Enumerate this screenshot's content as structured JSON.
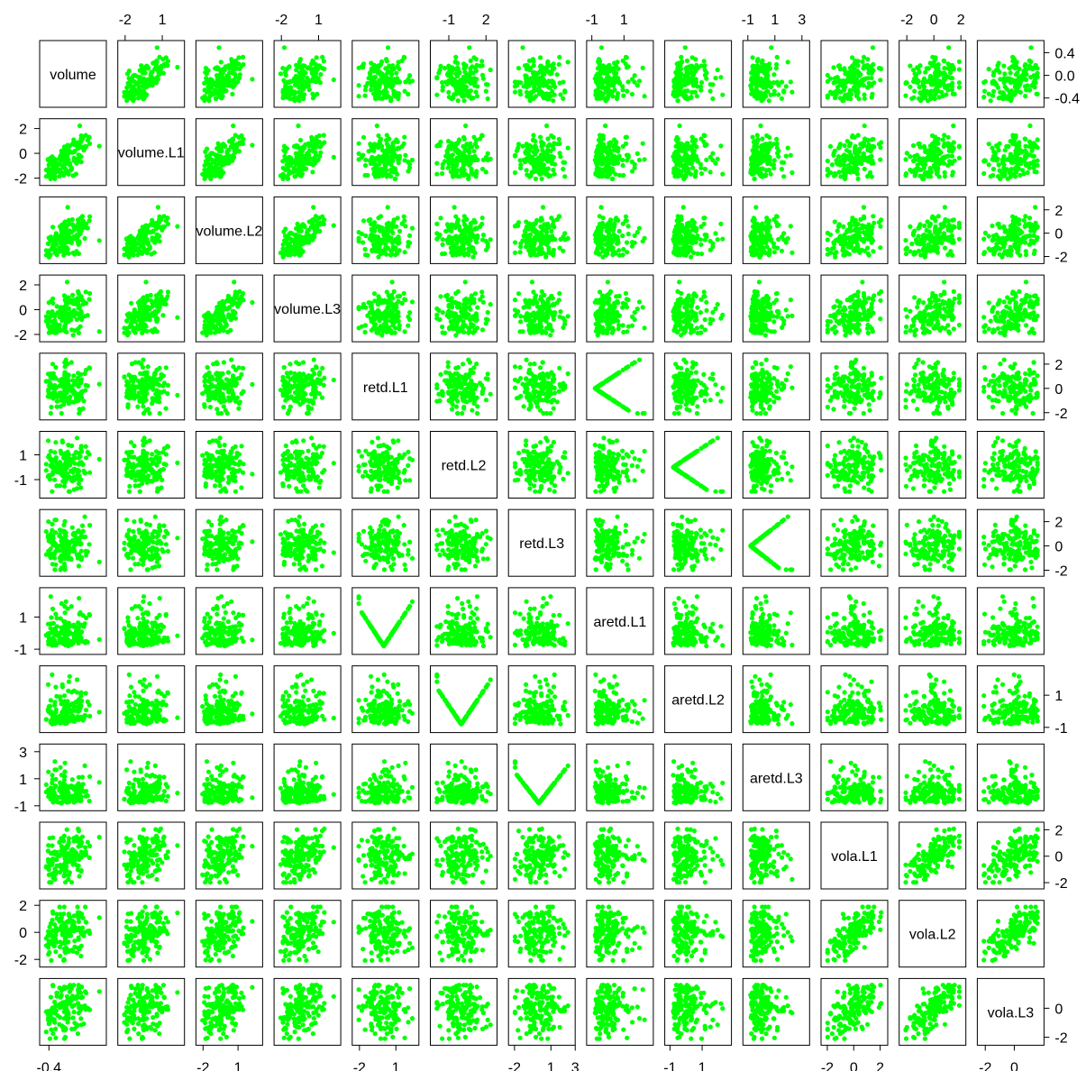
{
  "chart_data": {
    "type": "scatter",
    "subtype": "pairs-matrix",
    "variables": [
      "volume",
      "volume.L1",
      "volume.L2",
      "volume.L3",
      "retd.L1",
      "retd.L2",
      "retd.L3",
      "aretd.L1",
      "aretd.L2",
      "aretd.L3",
      "vola.L1",
      "vola.L2",
      "vola.L3"
    ],
    "point_color": "#00FF00",
    "point_count_per_panel": 150,
    "ranges": [
      [
        -0.5,
        0.55
      ],
      [
        -2.3,
        2.5
      ],
      [
        -2.3,
        2.8
      ],
      [
        -2.3,
        2.5
      ],
      [
        -2.3,
        2.6
      ],
      [
        -2.2,
        2.6
      ],
      [
        -2.2,
        2.7
      ],
      [
        -1.1,
        2.6
      ],
      [
        -1.1,
        2.6
      ],
      [
        -1.1,
        3.3
      ],
      [
        -2.2,
        2.3
      ],
      [
        -2.3,
        2.1
      ],
      [
        -2.3,
        1.8
      ]
    ],
    "top_axis_ticks": {
      "volume.L1": [
        "-2",
        "1"
      ],
      "volume.L3": [
        "-2",
        "1"
      ],
      "retd.L2": [
        "-1",
        "2"
      ],
      "aretd.L1": [
        "-1",
        "1"
      ],
      "aretd.L3": [
        "-1",
        "1",
        "3"
      ],
      "vola.L2": [
        "-2",
        "0",
        "2"
      ]
    },
    "bottom_axis_ticks": {
      "volume": [
        "-0.4"
      ],
      "volume.L2": [
        "-2",
        "1"
      ],
      "retd.L1": [
        "-2",
        "1"
      ],
      "retd.L3": [
        "-2",
        "1",
        "3"
      ],
      "aretd.L2": [
        "-1",
        "1"
      ],
      "vola.L1": [
        "-2",
        "0",
        "2"
      ],
      "vola.L3": [
        "-2",
        "0"
      ]
    },
    "left_axis_ticks": {
      "volume.L1": [
        "2",
        "0",
        "-2"
      ],
      "volume.L3": [
        "2",
        "0",
        "-2"
      ],
      "retd.L2": [
        "1",
        "-1"
      ],
      "aretd.L1": [
        "1",
        "-1"
      ],
      "aretd.L3": [
        "3",
        "1",
        "-1"
      ],
      "vola.L2": [
        "2",
        "0",
        "-2"
      ]
    },
    "right_axis_ticks": {
      "volume": [
        "0.4",
        "0.0",
        "-0.4"
      ],
      "volume.L2": [
        "2",
        "0",
        "-2"
      ],
      "retd.L1": [
        "2",
        "0",
        "-2"
      ],
      "retd.L3": [
        "2",
        "0",
        "-2"
      ],
      "aretd.L2": [
        "1",
        "-1"
      ],
      "vola.L1": [
        "2",
        "0",
        "-2"
      ],
      "vola.L3": [
        "0",
        "-2"
      ]
    }
  }
}
